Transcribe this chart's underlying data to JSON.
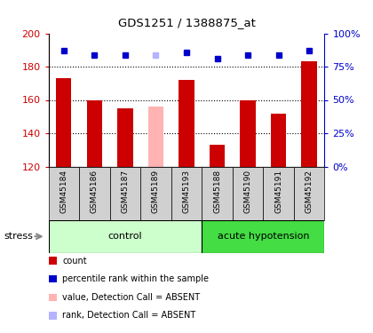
{
  "title": "GDS1251 / 1388875_at",
  "samples": [
    "GSM45184",
    "GSM45186",
    "GSM45187",
    "GSM45189",
    "GSM45193",
    "GSM45188",
    "GSM45190",
    "GSM45191",
    "GSM45192"
  ],
  "bar_values": [
    173,
    160,
    155,
    156,
    172,
    133,
    160,
    152,
    183
  ],
  "bar_colors": [
    "#cc0000",
    "#cc0000",
    "#cc0000",
    "#ffb3b3",
    "#cc0000",
    "#cc0000",
    "#cc0000",
    "#cc0000",
    "#cc0000"
  ],
  "rank_values": [
    87,
    84,
    84,
    84,
    86,
    81,
    84,
    84,
    87
  ],
  "rank_colors": [
    "#0000cc",
    "#0000cc",
    "#0000cc",
    "#b3b3ff",
    "#0000cc",
    "#0000cc",
    "#0000cc",
    "#0000cc",
    "#0000cc"
  ],
  "ylim_left": [
    120,
    200
  ],
  "ylim_right": [
    0,
    100
  ],
  "yticks_left": [
    120,
    140,
    160,
    180,
    200
  ],
  "yticks_right": [
    0,
    25,
    50,
    75,
    100
  ],
  "ytick_labels_right": [
    "0%",
    "25%",
    "50%",
    "75%",
    "100%"
  ],
  "control_color": "#ccffcc",
  "hypotension_color": "#44dd44",
  "control_n": 5,
  "hypotension_n": 4,
  "stress_label": "stress",
  "legend_items": [
    {
      "color": "#cc0000",
      "label": "count"
    },
    {
      "color": "#0000cc",
      "label": "percentile rank within the sample"
    },
    {
      "color": "#ffb3b3",
      "label": "value, Detection Call = ABSENT"
    },
    {
      "color": "#b3b3ff",
      "label": "rank, Detection Call = ABSENT"
    }
  ],
  "grid_yticks": [
    140,
    160,
    180
  ],
  "bar_width": 0.5,
  "left_color": "#cc0000",
  "right_color": "#0000cc",
  "sample_box_color": "#d0d0d0",
  "rank_marker_size": 5
}
